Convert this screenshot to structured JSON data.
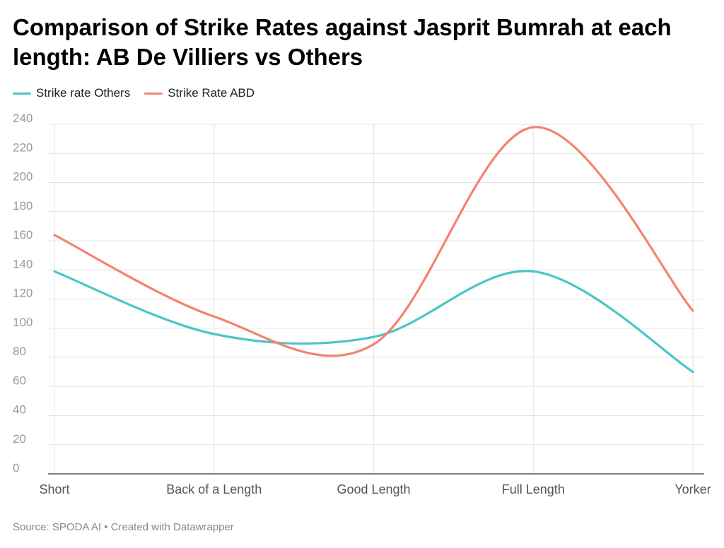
{
  "chart_data": {
    "type": "line",
    "title": "Comparison of Strike Rates against Jasprit Bumrah at each length: AB De Villiers vs Others",
    "categories": [
      "Short",
      "Back of a Length",
      "Good Length",
      "Full Length",
      "Yorker"
    ],
    "series": [
      {
        "name": "Strike rate Others",
        "color": "#4bc6c6",
        "values": [
          139,
          96,
          94,
          139,
          70
        ]
      },
      {
        "name": "Strike Rate ABD",
        "color": "#f58271",
        "values": [
          164,
          108,
          89,
          238,
          112
        ]
      }
    ],
    "yticks": [
      0,
      20,
      40,
      60,
      80,
      100,
      120,
      140,
      160,
      180,
      200,
      220,
      240
    ],
    "ylim": [
      0,
      240
    ],
    "xlabel": "",
    "ylabel": "",
    "grid": true,
    "legend_position": "top-left",
    "source": "Source: SPODA AI • Created with Datawrapper"
  }
}
